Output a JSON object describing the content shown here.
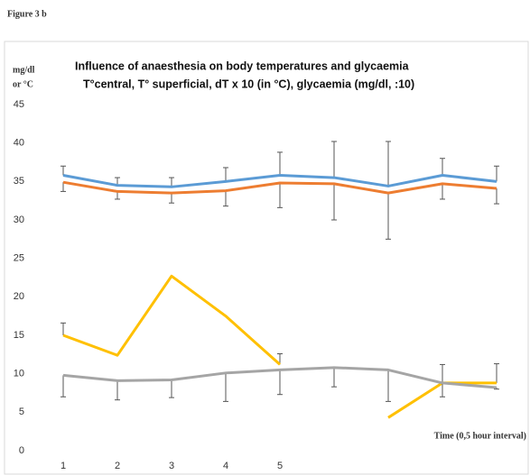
{
  "figure_label": "Figure 3 b",
  "chart_data": {
    "type": "line",
    "title": "Influence of anaesthesia on body temperatures and glycaemia",
    "subtitle": "T°central, T° superficial, dT x 10 (in °C), glycaemia (mg/dl, :10)",
    "y_label": [
      "mg/dl",
      "or °C"
    ],
    "x_label": "Time (0,5 hour interval)",
    "categories": [
      "1",
      "2",
      "3",
      "4",
      "5",
      null,
      null,
      null,
      null
    ],
    "ylim": [
      0,
      45
    ],
    "yticks": [
      0,
      5,
      10,
      15,
      20,
      25,
      30,
      35,
      40,
      45
    ],
    "grid": false,
    "series": [
      {
        "color": "#5b9bd5",
        "values": [
          35.8,
          34.5,
          34.3,
          35.0,
          35.8,
          35.5,
          34.4,
          35.8,
          35.0
        ],
        "errors": [
          1.2,
          1.0,
          1.2,
          1.8,
          3.0,
          4.7,
          5.8,
          2.2,
          2.0
        ],
        "error_direction": "up"
      },
      {
        "color": "#ed7d31",
        "values": [
          34.9,
          33.7,
          33.5,
          33.8,
          34.8,
          34.7,
          33.5,
          34.7,
          34.1
        ],
        "errors": [
          1.2,
          1.0,
          1.3,
          2.0,
          3.2,
          4.7,
          6.0,
          2.0,
          2.0
        ],
        "error_direction": "down"
      },
      {
        "color": "#ffc000",
        "values": [
          15.0,
          12.4,
          22.7,
          17.5,
          11.2,
          null,
          4.3,
          8.8,
          8.8
        ],
        "errors": [
          1.6,
          null,
          null,
          null,
          1.4,
          null,
          null,
          2.4,
          2.5
        ],
        "error_direction": "up"
      },
      {
        "color": "#a5a5a5",
        "values": [
          9.8,
          9.1,
          9.2,
          10.1,
          10.5,
          10.8,
          10.5,
          8.8,
          8.2
        ],
        "errors": [
          2.8,
          2.5,
          2.3,
          3.7,
          3.2,
          2.5,
          4.1,
          1.8,
          0.2
        ],
        "error_direction": "down"
      }
    ]
  }
}
